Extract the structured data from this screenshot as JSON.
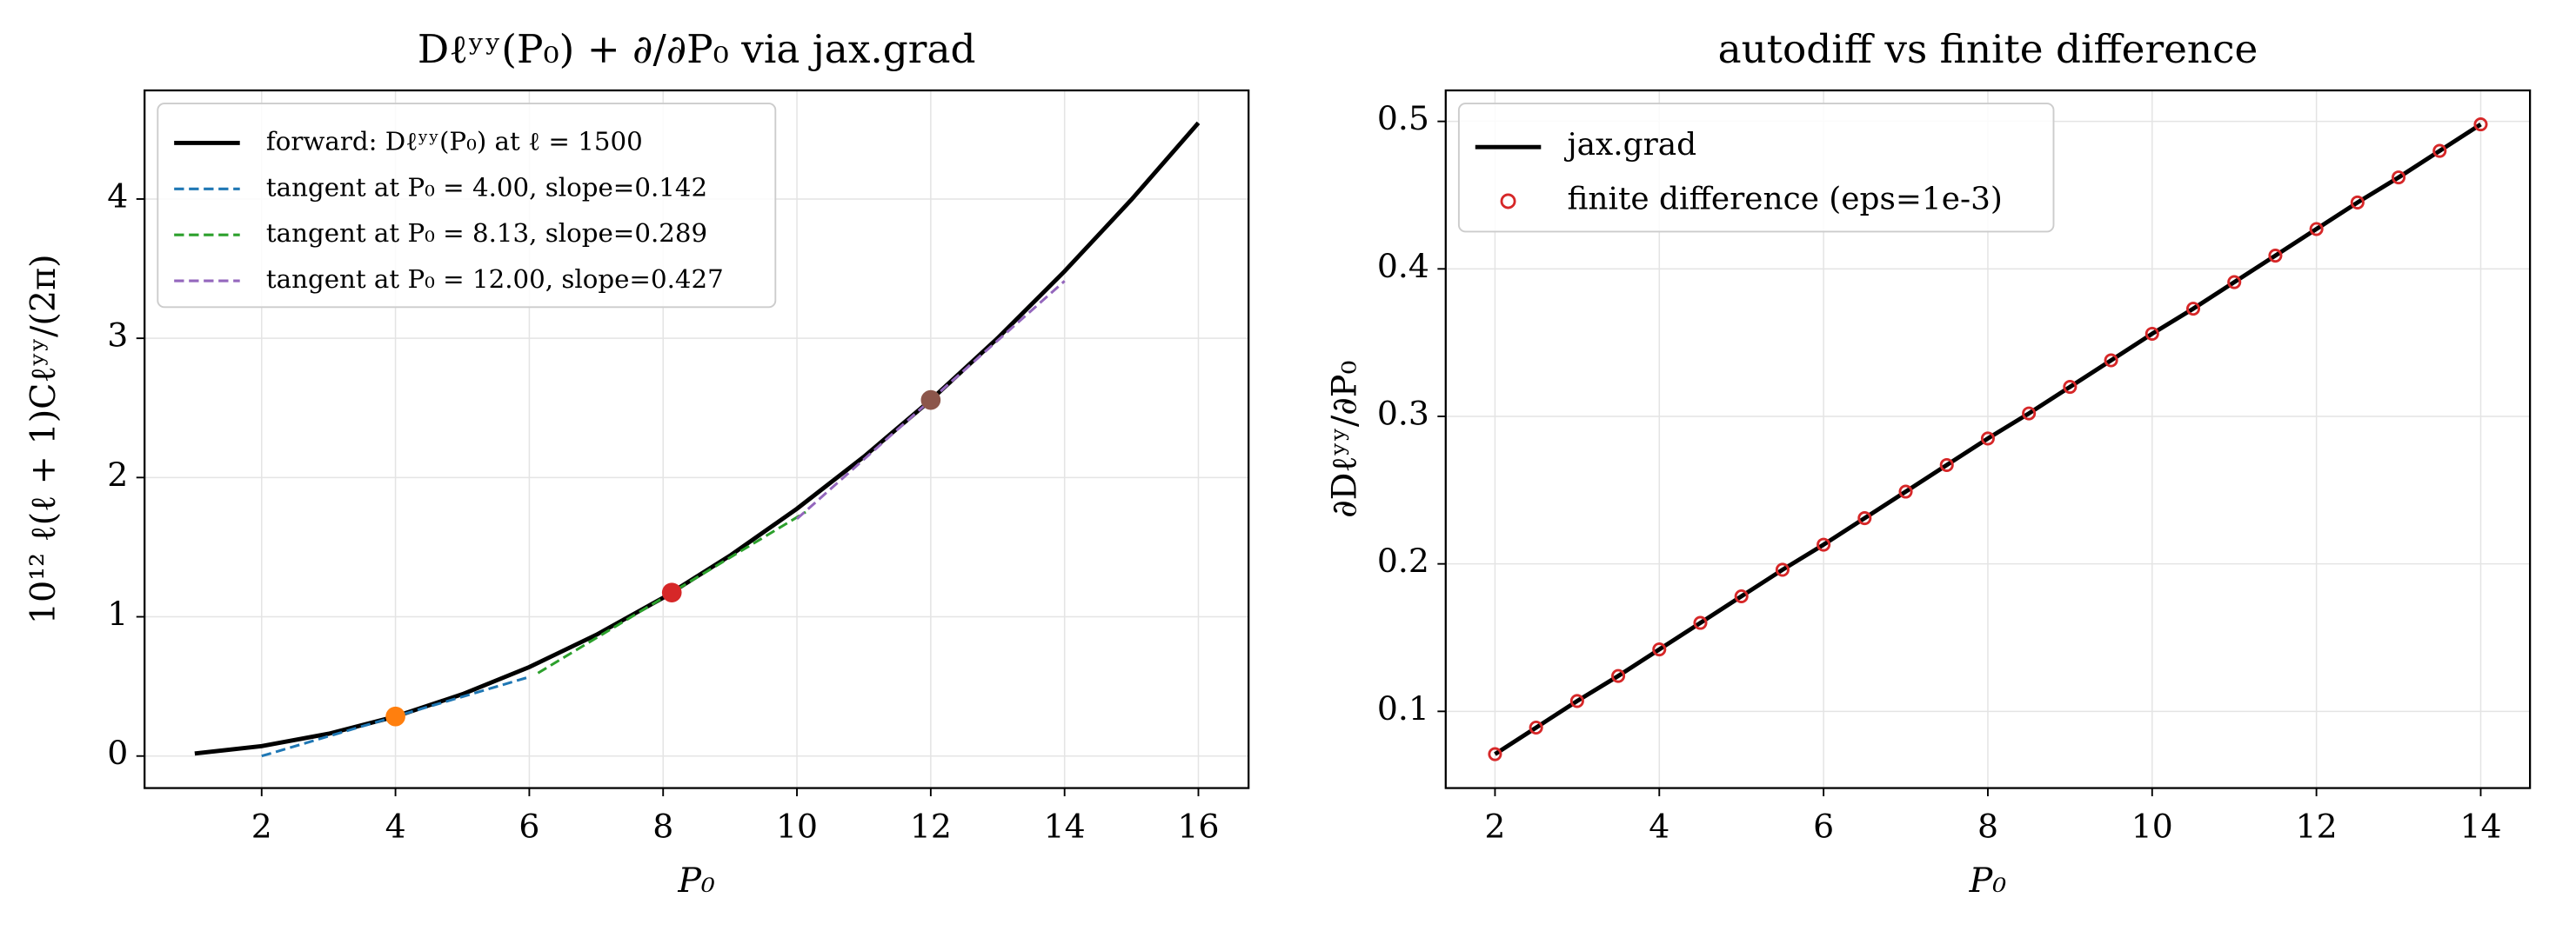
{
  "chart_data": [
    {
      "type": "line",
      "title": "Dℓʸʸ(P₀) + ∂/∂P₀ via jax.grad",
      "xlabel": "P₀",
      "ylabel": "10¹² ℓ(ℓ + 1)Cℓʸʸ/(2π)",
      "xlim": [
        0.25,
        16.75
      ],
      "ylim": [
        -0.23,
        4.78
      ],
      "xticks": [
        2,
        4,
        6,
        8,
        10,
        12,
        14,
        16
      ],
      "yticks": [
        0,
        1,
        2,
        3,
        4
      ],
      "grid": true,
      "legend": "upper left",
      "series": [
        {
          "name": "forward: Dℓʸʸ(P₀) at ℓ = 1500",
          "color": "#000000",
          "style": "solid",
          "x": [
            1,
            2,
            3,
            4,
            5,
            6,
            7,
            8,
            9,
            10,
            11,
            12,
            13,
            14,
            15,
            16
          ],
          "values": [
            0.018,
            0.071,
            0.16,
            0.284,
            0.444,
            0.639,
            0.87,
            1.137,
            1.439,
            1.776,
            2.149,
            2.557,
            3.001,
            3.481,
            3.996,
            4.547
          ]
        },
        {
          "name": "tangent at P₀ = 4.00, slope=0.142",
          "color": "#1f77b4",
          "style": "dashed",
          "x": [
            2,
            6
          ],
          "values": [
            0.0,
            0.568
          ]
        },
        {
          "name": "tangent at P₀ = 8.13, slope=0.289",
          "color": "#2ca02c",
          "style": "dashed",
          "x": [
            6.13,
            10.13
          ],
          "values": [
            0.596,
            1.752
          ]
        },
        {
          "name": "tangent at P₀ = 12.00, slope=0.427",
          "color": "#9467bd",
          "style": "dashed",
          "x": [
            10,
            14
          ],
          "values": [
            1.703,
            3.411
          ]
        }
      ],
      "points": {
        "x": [
          4,
          8.13,
          12
        ],
        "values": [
          0.284,
          1.174,
          2.557
        ],
        "colors": [
          "#ff7f0e",
          "#d62728",
          "#8c564b"
        ]
      }
    },
    {
      "type": "line",
      "title": "autodiff vs finite difference",
      "xlabel": "P₀",
      "ylabel": "∂Dℓʸʸ/∂P₀",
      "xlim": [
        1.4,
        14.6
      ],
      "ylim": [
        0.048,
        0.521
      ],
      "xticks": [
        2,
        4,
        6,
        8,
        10,
        12,
        14
      ],
      "yticks": [
        0.1,
        0.2,
        0.3,
        0.4,
        0.5
      ],
      "grid": true,
      "legend": "upper left",
      "series": [
        {
          "name": "jax.grad",
          "color": "#000000",
          "style": "solid",
          "x": [
            2,
            2.5,
            3,
            3.5,
            4,
            4.5,
            5,
            5.5,
            6,
            6.5,
            7,
            7.5,
            8,
            8.5,
            9,
            9.5,
            10,
            10.5,
            11,
            11.5,
            12,
            12.5,
            13,
            13.5,
            14
          ],
          "values": [
            0.071,
            0.089,
            0.107,
            0.124,
            0.142,
            0.16,
            0.178,
            0.196,
            0.213,
            0.231,
            0.249,
            0.267,
            0.285,
            0.302,
            0.32,
            0.338,
            0.356,
            0.373,
            0.391,
            0.409,
            0.427,
            0.445,
            0.462,
            0.48,
            0.498
          ]
        },
        {
          "name": "finite difference (eps=1e-3)",
          "color": "#d62728",
          "style": "markers",
          "x": [
            2,
            2.5,
            3,
            3.5,
            4,
            4.5,
            5,
            5.5,
            6,
            6.5,
            7,
            7.5,
            8,
            8.5,
            9,
            9.5,
            10,
            10.5,
            11,
            11.5,
            12,
            12.5,
            13,
            13.5,
            14
          ],
          "values": [
            0.071,
            0.089,
            0.107,
            0.124,
            0.142,
            0.16,
            0.178,
            0.196,
            0.213,
            0.231,
            0.249,
            0.267,
            0.285,
            0.302,
            0.32,
            0.338,
            0.356,
            0.373,
            0.391,
            0.409,
            0.427,
            0.445,
            0.462,
            0.48,
            0.498
          ]
        }
      ]
    }
  ]
}
